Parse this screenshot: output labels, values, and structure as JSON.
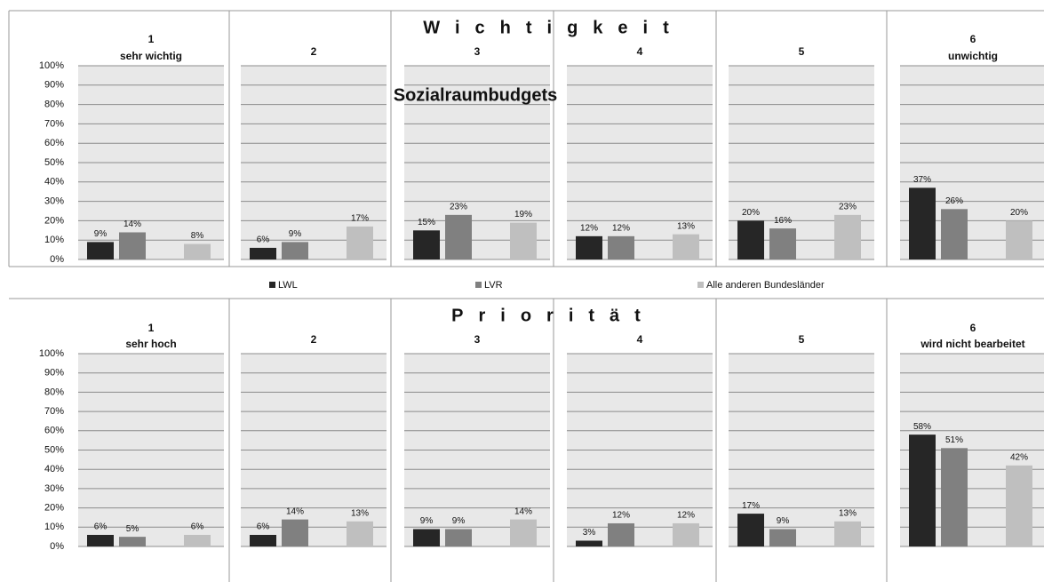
{
  "title": "Sozialraumbudgets",
  "chart_data": [
    {
      "type": "bar",
      "title": "Wichtigkeit",
      "categories": [
        "1",
        "2",
        "3",
        "4",
        "5",
        "6"
      ],
      "category_subtitles": [
        "sehr wichtig",
        null,
        null,
        null,
        null,
        "unwichtig"
      ],
      "ylim": [
        0,
        100
      ],
      "yticks": [
        {
          "value": 0,
          "label": "0%"
        },
        {
          "value": 10,
          "label": "10%"
        },
        {
          "value": 20,
          "label": "20%"
        },
        {
          "value": 30,
          "label": "30%"
        },
        {
          "value": 40,
          "label": "40%"
        },
        {
          "value": 50,
          "label": "50%"
        },
        {
          "value": 60,
          "label": "60%"
        },
        {
          "value": 70,
          "label": "70%"
        },
        {
          "value": 80,
          "label": "80%"
        },
        {
          "value": 90,
          "label": "90%"
        },
        {
          "value": 100,
          "label": "100%"
        }
      ],
      "grid": true,
      "series": [
        {
          "name": "LWL",
          "color": "#262626",
          "values": [
            9,
            6,
            15,
            12,
            20,
            37
          ],
          "value_labels": [
            "9%",
            "6%",
            "15%",
            "12%",
            "20%",
            "37%"
          ]
        },
        {
          "name": "LVR",
          "color": "#808080",
          "values": [
            14,
            9,
            23,
            12,
            16,
            26
          ],
          "value_labels": [
            "14%",
            "9%",
            "23%",
            "12%",
            "16%",
            "26%"
          ]
        },
        {
          "name": "Alle anderen Bundesländer",
          "color": "#bfbfbf",
          "values": [
            8,
            17,
            19,
            13,
            23,
            20
          ],
          "value_labels": [
            "8%",
            "17%",
            "19%",
            "13%",
            "23%",
            "20%"
          ]
        }
      ]
    },
    {
      "type": "bar",
      "title": "Priorität",
      "categories": [
        "1",
        "2",
        "3",
        "4",
        "5",
        "6"
      ],
      "category_subtitles": [
        "sehr hoch",
        null,
        null,
        null,
        null,
        "wird nicht bearbeitet"
      ],
      "ylim": [
        0,
        100
      ],
      "yticks": [
        {
          "value": 0,
          "label": "0%"
        },
        {
          "value": 10,
          "label": "10%"
        },
        {
          "value": 20,
          "label": "20%"
        },
        {
          "value": 30,
          "label": "30%"
        },
        {
          "value": 40,
          "label": "40%"
        },
        {
          "value": 50,
          "label": "50%"
        },
        {
          "value": 60,
          "label": "60%"
        },
        {
          "value": 70,
          "label": "70%"
        },
        {
          "value": 80,
          "label": "80%"
        },
        {
          "value": 90,
          "label": "90%"
        },
        {
          "value": 100,
          "label": "100%"
        }
      ],
      "grid": true,
      "series": [
        {
          "color": "#262626",
          "values": [
            6,
            6,
            9,
            3,
            17,
            58
          ],
          "value_labels": [
            "6%",
            "6%",
            "9%",
            "3%",
            "17%",
            "58%"
          ]
        },
        {
          "color": "#808080",
          "values": [
            5,
            14,
            9,
            12,
            9,
            51
          ],
          "value_labels": [
            "5%",
            "14%",
            "9%",
            "12%",
            "9%",
            "51%"
          ]
        },
        {
          "color": "#bfbfbf",
          "values": [
            6,
            13,
            14,
            12,
            13,
            42
          ],
          "value_labels": [
            "6%",
            "13%",
            "14%",
            "12%",
            "13%",
            "42%"
          ]
        }
      ]
    }
  ]
}
